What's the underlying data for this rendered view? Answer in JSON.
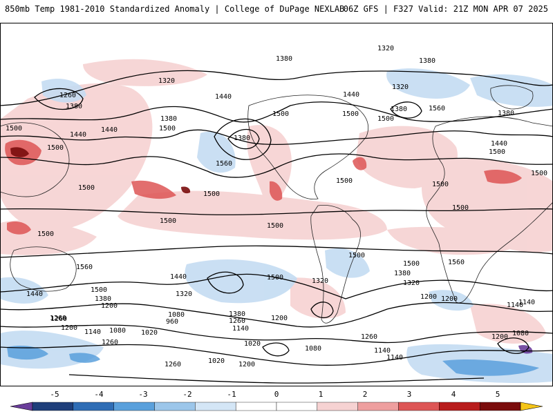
{
  "header": {
    "left": "850mb Temp 1981-2010 Standardized Anomaly | College of DuPage NEXLAB",
    "right": "06Z GFS | F327 Valid: 21Z MON APR 07 2025"
  },
  "colorbar": {
    "ticks": [
      "-5",
      "-4",
      "-3",
      "-2",
      "-1",
      "0",
      "1",
      "2",
      "3",
      "4",
      "5"
    ],
    "colors": [
      "#6a3d9a",
      "#1f3f7a",
      "#2f6db5",
      "#5aa0dc",
      "#9cc6ea",
      "#d4e6f6",
      "#ffffff",
      "#ffffff",
      "#f6d2d2",
      "#ee9f9f",
      "#dd5555",
      "#b81c1c",
      "#7a0c0c",
      "#f5c518"
    ]
  },
  "contour_labels": [
    {
      "text": "1320"
    },
    {
      "text": "1380"
    },
    {
      "text": "1380"
    },
    {
      "text": "1320"
    },
    {
      "text": "1260"
    },
    {
      "text": "1380"
    },
    {
      "text": "1440"
    },
    {
      "text": "1440"
    },
    {
      "text": "1500"
    },
    {
      "text": "1380"
    },
    {
      "text": "1500"
    },
    {
      "text": "1440"
    },
    {
      "text": "1440"
    },
    {
      "text": "1500"
    },
    {
      "text": "1380"
    },
    {
      "text": "1500"
    },
    {
      "text": "1500"
    },
    {
      "text": "1560"
    },
    {
      "text": "1500"
    },
    {
      "text": "1320"
    },
    {
      "text": "1380"
    },
    {
      "text": "1560"
    },
    {
      "text": "1500"
    },
    {
      "text": "1380"
    },
    {
      "text": "1500"
    },
    {
      "text": "1500"
    },
    {
      "text": "1500"
    },
    {
      "text": "1500"
    },
    {
      "text": "1500"
    },
    {
      "text": "1500"
    },
    {
      "text": "1500"
    },
    {
      "text": "1500"
    },
    {
      "text": "1500"
    },
    {
      "text": "1500"
    },
    {
      "text": "1560"
    },
    {
      "text": "1560"
    },
    {
      "text": "1500"
    },
    {
      "text": "1440"
    },
    {
      "text": "1380"
    },
    {
      "text": "1320"
    },
    {
      "text": "1500"
    },
    {
      "text": "1440"
    },
    {
      "text": "1320"
    },
    {
      "text": "1380"
    },
    {
      "text": "1320"
    },
    {
      "text": "1440"
    },
    {
      "text": "1500"
    },
    {
      "text": "1380"
    },
    {
      "text": "1260"
    },
    {
      "text": "1200"
    },
    {
      "text": "1080"
    },
    {
      "text": "960"
    },
    {
      "text": "1260"
    },
    {
      "text": "1140"
    },
    {
      "text": "1200"
    },
    {
      "text": "1260"
    },
    {
      "text": "1200"
    },
    {
      "text": "1140"
    },
    {
      "text": "1080"
    },
    {
      "text": "1020"
    },
    {
      "text": "1260"
    },
    {
      "text": "1020"
    },
    {
      "text": "1080"
    },
    {
      "text": "1140"
    },
    {
      "text": "1140"
    },
    {
      "text": "1260"
    },
    {
      "text": "1200"
    },
    {
      "text": "1140"
    },
    {
      "text": "1200"
    },
    {
      "text": "1080"
    },
    {
      "text": "1260"
    },
    {
      "text": "1020"
    },
    {
      "text": "1200"
    },
    {
      "text": "1140"
    },
    {
      "text": "1200"
    }
  ]
}
